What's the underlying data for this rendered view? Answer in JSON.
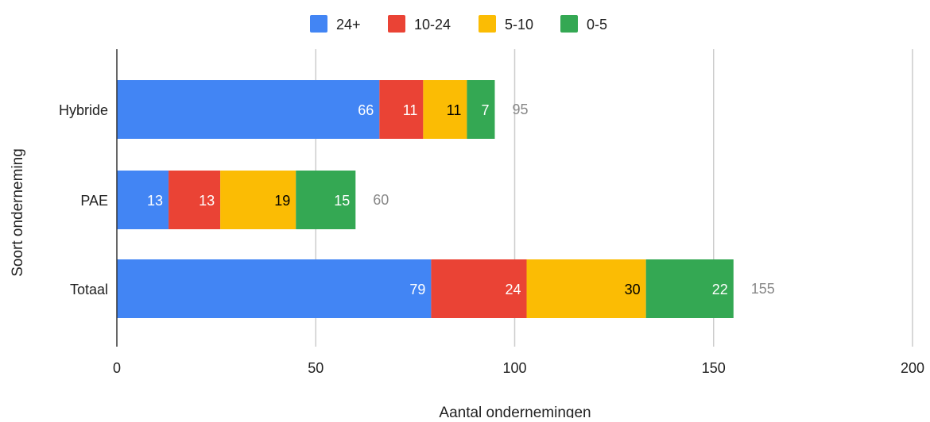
{
  "chart_data": {
    "type": "bar",
    "orientation": "horizontal",
    "stacked": true,
    "categories": [
      "Hybride",
      "PAE",
      "Totaal"
    ],
    "series": [
      {
        "name": "24+",
        "color": "#4285f4",
        "values": [
          66,
          13,
          79
        ],
        "label_color": "#ffffff"
      },
      {
        "name": "10-24",
        "color": "#ea4335",
        "values": [
          11,
          13,
          24
        ],
        "label_color": "#ffffff"
      },
      {
        "name": "5-10",
        "color": "#fbbc04",
        "values": [
          11,
          19,
          30
        ],
        "label_color": "#000000"
      },
      {
        "name": "0-5",
        "color": "#34a853",
        "values": [
          7,
          15,
          22
        ],
        "label_color": "#ffffff"
      }
    ],
    "totals": [
      95,
      60,
      155
    ],
    "xlabel": "Aantal ondernemingen",
    "ylabel": "Soort onderneming",
    "xlim": [
      0,
      200
    ],
    "xticks": [
      "0",
      "50",
      "100",
      "150",
      "200"
    ],
    "grid": true,
    "legend_position": "top"
  }
}
